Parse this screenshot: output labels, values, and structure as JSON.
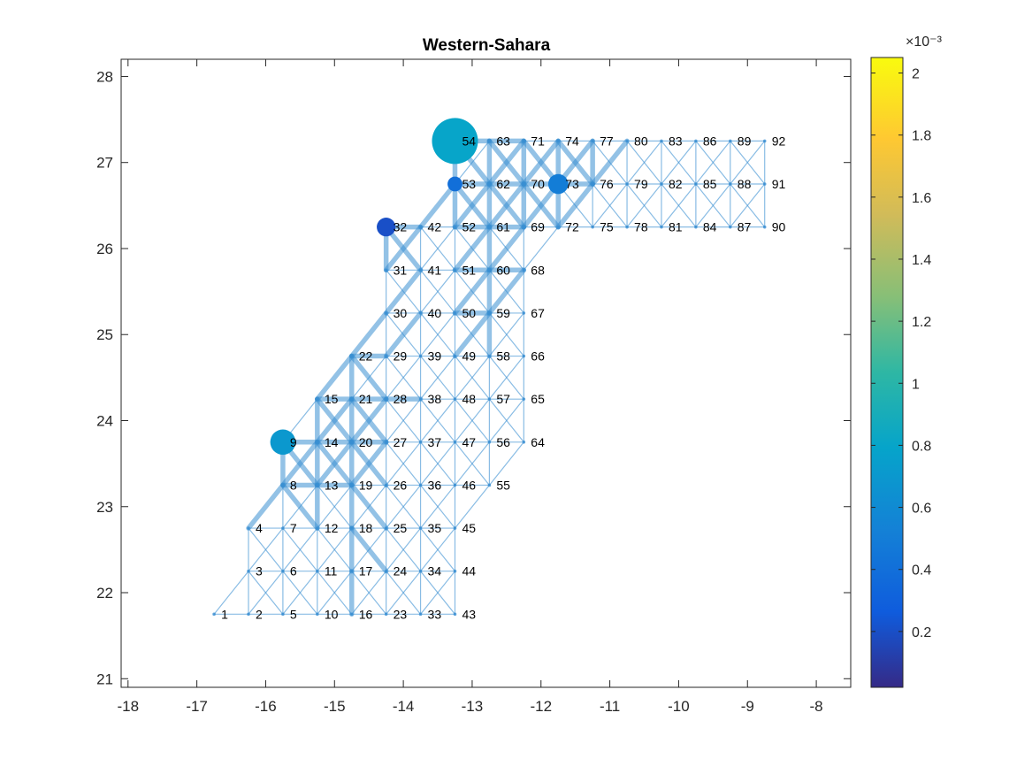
{
  "chart_data": {
    "type": "network",
    "title": "Western-Sahara",
    "xlabel": "",
    "ylabel": "",
    "xlim": [
      -18.1,
      -7.5
    ],
    "ylim": [
      20.9,
      28.2
    ],
    "xticks": [
      -18,
      -17,
      -16,
      -15,
      -14,
      -13,
      -12,
      -11,
      -10,
      -9,
      -8
    ],
    "yticks": [
      21,
      22,
      23,
      24,
      25,
      26,
      27,
      28
    ],
    "grid": false,
    "edge_color": "#3a8fd2",
    "node_color": "#2f8fdc",
    "nodes": [
      {
        "id": 1,
        "x": -16.75,
        "y": 21.75
      },
      {
        "id": 2,
        "x": -16.25,
        "y": 21.75
      },
      {
        "id": 3,
        "x": -16.25,
        "y": 22.25
      },
      {
        "id": 4,
        "x": -16.25,
        "y": 22.75
      },
      {
        "id": 5,
        "x": -15.75,
        "y": 21.75
      },
      {
        "id": 6,
        "x": -15.75,
        "y": 22.25
      },
      {
        "id": 7,
        "x": -15.75,
        "y": 22.75
      },
      {
        "id": 8,
        "x": -15.75,
        "y": 23.25
      },
      {
        "id": 9,
        "x": -15.75,
        "y": 23.75
      },
      {
        "id": 10,
        "x": -15.25,
        "y": 21.75
      },
      {
        "id": 11,
        "x": -15.25,
        "y": 22.25
      },
      {
        "id": 12,
        "x": -15.25,
        "y": 22.75
      },
      {
        "id": 13,
        "x": -15.25,
        "y": 23.25
      },
      {
        "id": 14,
        "x": -15.25,
        "y": 23.75
      },
      {
        "id": 15,
        "x": -15.25,
        "y": 24.25
      },
      {
        "id": 16,
        "x": -14.75,
        "y": 21.75
      },
      {
        "id": 17,
        "x": -14.75,
        "y": 22.25
      },
      {
        "id": 18,
        "x": -14.75,
        "y": 22.75
      },
      {
        "id": 19,
        "x": -14.75,
        "y": 23.25
      },
      {
        "id": 20,
        "x": -14.75,
        "y": 23.75
      },
      {
        "id": 21,
        "x": -14.75,
        "y": 24.25
      },
      {
        "id": 22,
        "x": -14.75,
        "y": 24.75
      },
      {
        "id": 23,
        "x": -14.25,
        "y": 21.75
      },
      {
        "id": 24,
        "x": -14.25,
        "y": 22.25
      },
      {
        "id": 25,
        "x": -14.25,
        "y": 22.75
      },
      {
        "id": 26,
        "x": -14.25,
        "y": 23.25
      },
      {
        "id": 27,
        "x": -14.25,
        "y": 23.75
      },
      {
        "id": 28,
        "x": -14.25,
        "y": 24.25
      },
      {
        "id": 29,
        "x": -14.25,
        "y": 24.75
      },
      {
        "id": 30,
        "x": -14.25,
        "y": 25.25
      },
      {
        "id": 31,
        "x": -14.25,
        "y": 25.75
      },
      {
        "id": 32,
        "x": -14.25,
        "y": 26.25
      },
      {
        "id": 33,
        "x": -13.75,
        "y": 21.75
      },
      {
        "id": 34,
        "x": -13.75,
        "y": 22.25
      },
      {
        "id": 35,
        "x": -13.75,
        "y": 22.75
      },
      {
        "id": 36,
        "x": -13.75,
        "y": 23.25
      },
      {
        "id": 37,
        "x": -13.75,
        "y": 23.75
      },
      {
        "id": 38,
        "x": -13.75,
        "y": 24.25
      },
      {
        "id": 39,
        "x": -13.75,
        "y": 24.75
      },
      {
        "id": 40,
        "x": -13.75,
        "y": 25.25
      },
      {
        "id": 41,
        "x": -13.75,
        "y": 25.75
      },
      {
        "id": 42,
        "x": -13.75,
        "y": 26.25
      },
      {
        "id": 43,
        "x": -13.25,
        "y": 21.75
      },
      {
        "id": 44,
        "x": -13.25,
        "y": 22.25
      },
      {
        "id": 45,
        "x": -13.25,
        "y": 22.75
      },
      {
        "id": 46,
        "x": -13.25,
        "y": 23.25
      },
      {
        "id": 47,
        "x": -13.25,
        "y": 23.75
      },
      {
        "id": 48,
        "x": -13.25,
        "y": 24.25
      },
      {
        "id": 49,
        "x": -13.25,
        "y": 24.75
      },
      {
        "id": 50,
        "x": -13.25,
        "y": 25.25
      },
      {
        "id": 51,
        "x": -13.25,
        "y": 25.75
      },
      {
        "id": 52,
        "x": -13.25,
        "y": 26.25
      },
      {
        "id": 53,
        "x": -13.25,
        "y": 26.75
      },
      {
        "id": 54,
        "x": -13.25,
        "y": 27.25
      },
      {
        "id": 55,
        "x": -12.75,
        "y": 23.25
      },
      {
        "id": 56,
        "x": -12.75,
        "y": 23.75
      },
      {
        "id": 57,
        "x": -12.75,
        "y": 24.25
      },
      {
        "id": 58,
        "x": -12.75,
        "y": 24.75
      },
      {
        "id": 59,
        "x": -12.75,
        "y": 25.25
      },
      {
        "id": 60,
        "x": -12.75,
        "y": 25.75
      },
      {
        "id": 61,
        "x": -12.75,
        "y": 26.25
      },
      {
        "id": 62,
        "x": -12.75,
        "y": 26.75
      },
      {
        "id": 63,
        "x": -12.75,
        "y": 27.25
      },
      {
        "id": 64,
        "x": -12.25,
        "y": 23.75
      },
      {
        "id": 65,
        "x": -12.25,
        "y": 24.25
      },
      {
        "id": 66,
        "x": -12.25,
        "y": 24.75
      },
      {
        "id": 67,
        "x": -12.25,
        "y": 25.25
      },
      {
        "id": 68,
        "x": -12.25,
        "y": 25.75
      },
      {
        "id": 69,
        "x": -12.25,
        "y": 26.25
      },
      {
        "id": 70,
        "x": -12.25,
        "y": 26.75
      },
      {
        "id": 71,
        "x": -12.25,
        "y": 27.25
      },
      {
        "id": 72,
        "x": -11.75,
        "y": 26.25
      },
      {
        "id": 73,
        "x": -11.75,
        "y": 26.75
      },
      {
        "id": 74,
        "x": -11.75,
        "y": 27.25
      },
      {
        "id": 75,
        "x": -11.25,
        "y": 26.25
      },
      {
        "id": 76,
        "x": -11.25,
        "y": 26.75
      },
      {
        "id": 77,
        "x": -11.25,
        "y": 27.25
      },
      {
        "id": 78,
        "x": -10.75,
        "y": 26.25
      },
      {
        "id": 79,
        "x": -10.75,
        "y": 26.75
      },
      {
        "id": 80,
        "x": -10.75,
        "y": 27.25
      },
      {
        "id": 81,
        "x": -10.25,
        "y": 26.25
      },
      {
        "id": 82,
        "x": -10.25,
        "y": 26.75
      },
      {
        "id": 83,
        "x": -10.25,
        "y": 27.25
      },
      {
        "id": 84,
        "x": -9.75,
        "y": 26.25
      },
      {
        "id": 85,
        "x": -9.75,
        "y": 26.75
      },
      {
        "id": 86,
        "x": -9.75,
        "y": 27.25
      },
      {
        "id": 87,
        "x": -9.25,
        "y": 26.25
      },
      {
        "id": 88,
        "x": -9.25,
        "y": 26.75
      },
      {
        "id": 89,
        "x": -9.25,
        "y": 27.25
      },
      {
        "id": 90,
        "x": -8.75,
        "y": 26.25
      },
      {
        "id": 91,
        "x": -8.75,
        "y": 26.75
      },
      {
        "id": 92,
        "x": -8.75,
        "y": 27.25
      }
    ],
    "sources": [
      {
        "node": 54,
        "value": 0.0008,
        "magnitude": 1.0
      },
      {
        "node": 9,
        "value": 0.0007,
        "magnitude": 0.22
      },
      {
        "node": 73,
        "value": 0.0005,
        "magnitude": 0.11
      },
      {
        "node": 32,
        "value": 0.0002,
        "magnitude": 0.09
      },
      {
        "node": 53,
        "value": 0.0004,
        "magnitude": 0.04
      }
    ],
    "heavy_edges": [
      [
        4,
        8
      ],
      [
        8,
        9
      ],
      [
        8,
        13
      ],
      [
        9,
        14
      ],
      [
        9,
        13
      ],
      [
        8,
        14
      ],
      [
        13,
        14
      ],
      [
        13,
        19
      ],
      [
        13,
        20
      ],
      [
        14,
        19
      ],
      [
        14,
        20
      ],
      [
        14,
        15
      ],
      [
        14,
        21
      ],
      [
        15,
        20
      ],
      [
        15,
        21
      ],
      [
        15,
        22
      ],
      [
        8,
        12
      ],
      [
        13,
        15
      ],
      [
        19,
        20
      ],
      [
        20,
        21
      ],
      [
        20,
        27
      ],
      [
        21,
        22
      ],
      [
        21,
        28
      ],
      [
        22,
        28
      ],
      [
        20,
        28
      ],
      [
        19,
        27
      ],
      [
        20,
        26
      ],
      [
        21,
        27
      ],
      [
        16,
        17
      ],
      [
        17,
        18
      ],
      [
        18,
        19
      ],
      [
        12,
        13
      ],
      [
        18,
        24
      ],
      [
        19,
        25
      ],
      [
        22,
        29
      ],
      [
        27,
        33
      ],
      [
        28,
        38
      ],
      [
        22,
        30
      ],
      [
        29,
        40
      ],
      [
        26,
        34
      ],
      [
        27,
        35
      ],
      [
        28,
        36
      ],
      [
        30,
        41
      ],
      [
        31,
        42
      ],
      [
        31,
        32
      ],
      [
        32,
        41
      ],
      [
        32,
        42
      ],
      [
        42,
        53
      ],
      [
        52,
        53
      ],
      [
        53,
        54
      ],
      [
        53,
        62
      ],
      [
        54,
        62
      ],
      [
        54,
        63
      ],
      [
        52,
        62
      ],
      [
        52,
        61
      ],
      [
        53,
        61
      ],
      [
        62,
        63
      ],
      [
        61,
        62
      ],
      [
        51,
        61
      ],
      [
        60,
        61
      ],
      [
        59,
        60
      ],
      [
        60,
        69
      ],
      [
        61,
        69
      ],
      [
        61,
        70
      ],
      [
        62,
        70
      ],
      [
        62,
        71
      ],
      [
        63,
        70
      ],
      [
        63,
        71
      ],
      [
        70,
        71
      ],
      [
        69,
        70
      ],
      [
        70,
        73
      ],
      [
        69,
        73
      ],
      [
        72,
        73
      ],
      [
        73,
        74
      ],
      [
        70,
        74
      ],
      [
        71,
        73
      ],
      [
        72,
        70
      ],
      [
        73,
        76
      ],
      [
        73,
        77
      ],
      [
        74,
        76
      ],
      [
        76,
        77
      ],
      [
        76,
        80
      ],
      [
        72,
        76
      ],
      [
        51,
        60
      ],
      [
        50,
        59
      ],
      [
        50,
        60
      ],
      [
        49,
        59
      ],
      [
        58,
        59
      ],
      [
        59,
        68
      ],
      [
        60,
        68
      ],
      [
        62,
        69
      ],
      [
        63,
        62
      ]
    ]
  },
  "colorbar": {
    "exponent_label": "×10⁻³",
    "ticks": [
      "0.2",
      "0.4",
      "0.6",
      "0.8",
      "1",
      "1.2",
      "1.4",
      "1.6",
      "1.8",
      "2"
    ],
    "tick_values": [
      0.2,
      0.4,
      0.6,
      0.8,
      1.0,
      1.2,
      1.4,
      1.6,
      1.8,
      2.0
    ],
    "range": [
      0.02,
      2.05
    ],
    "colormap": "parula"
  }
}
